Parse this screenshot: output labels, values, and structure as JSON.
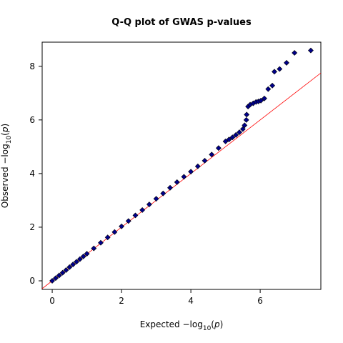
{
  "chart_data": {
    "type": "scatter",
    "title": "Q-Q plot of GWAS p-values",
    "xlabel": [
      "Expected  −log",
      "10",
      "(",
      "p",
      ")"
    ],
    "ylabel": [
      "Observed  −log",
      "10",
      "(",
      "p",
      ")"
    ],
    "series": [
      {
        "color": "#00008b",
        "x": [
          0,
          0.1,
          0.2,
          0.3,
          0.4,
          0.5,
          0.6,
          0.7,
          0.8,
          0.9,
          1.0,
          1.2,
          1.4,
          1.6,
          1.8,
          2.0,
          2.2,
          2.4,
          2.6,
          2.8,
          3.0,
          3.2,
          3.4,
          3.6,
          3.8,
          4.0,
          4.2,
          4.4,
          4.6,
          4.8,
          5.0,
          5.1,
          5.2,
          5.3,
          5.4,
          5.5,
          5.55,
          5.6,
          5.61,
          5.65,
          5.71,
          5.8,
          5.88,
          5.95,
          6.02,
          6.12,
          6.23,
          6.35,
          6.41,
          6.56,
          6.76,
          6.99,
          7.46
        ],
        "values": [
          0,
          0.1,
          0.2,
          0.3,
          0.4,
          0.51,
          0.61,
          0.71,
          0.81,
          0.91,
          1.01,
          1.21,
          1.42,
          1.62,
          1.82,
          2.03,
          2.23,
          2.44,
          2.64,
          2.85,
          3.06,
          3.26,
          3.47,
          3.68,
          3.88,
          4.07,
          4.27,
          4.48,
          4.71,
          4.95,
          5.2,
          5.27,
          5.35,
          5.44,
          5.54,
          5.66,
          5.8,
          6.0,
          6.2,
          6.5,
          6.57,
          6.62,
          6.67,
          6.69,
          6.72,
          6.8,
          7.15,
          7.28,
          7.8,
          7.9,
          8.13,
          8.5,
          8.59
        ]
      }
    ],
    "reference_line_color": "#ff0000",
    "xlim": [
      -0.29,
      7.75
    ],
    "ylim": [
      -0.32,
      8.9
    ],
    "xticks": [
      0,
      2,
      4,
      6
    ],
    "yticks": [
      0,
      2,
      4,
      6,
      8
    ]
  }
}
